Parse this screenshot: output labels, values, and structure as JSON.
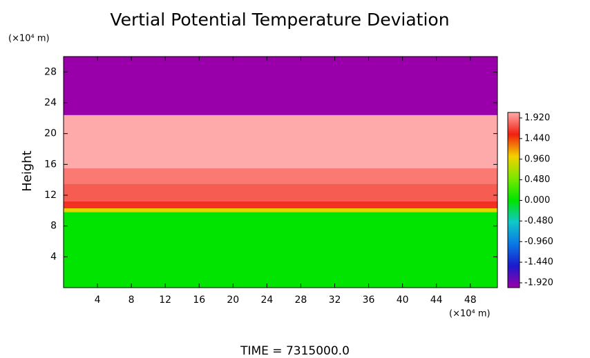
{
  "chart_data": {
    "type": "heatmap",
    "title": "Vertial Potential Temperature Deviation",
    "y_label": "Height",
    "y_unit": "(×10⁴ m)",
    "x_unit": "(×10⁴ m)",
    "footer": "TIME = 7315000.0",
    "xlim": [
      0,
      51.2
    ],
    "xticks": [
      4,
      8,
      12,
      16,
      20,
      24,
      28,
      32,
      36,
      40,
      44,
      48
    ],
    "ylim": [
      0,
      30
    ],
    "yticks": [
      4,
      8,
      12,
      16,
      20,
      24,
      28
    ],
    "field": [
      {
        "y0": 0,
        "y1": 9.8,
        "value": 0.0
      },
      {
        "y0": 9.8,
        "y1": 10.3,
        "value": 0.9
      },
      {
        "y0": 10.3,
        "y1": 11.2,
        "value": 1.5
      },
      {
        "y0": 11.2,
        "y1": 13.5,
        "value": 1.65
      },
      {
        "y0": 13.5,
        "y1": 15.5,
        "value": 1.75
      },
      {
        "y0": 15.5,
        "y1": 22.4,
        "value": 1.92
      },
      {
        "y0": 22.4,
        "y1": 30,
        "value": -1.92
      }
    ],
    "colorscale": [
      {
        "value": -1.92,
        "color": "#9a00aa"
      },
      {
        "value": -1.44,
        "color": "#1a1acc"
      },
      {
        "value": -0.96,
        "color": "#0a78e6"
      },
      {
        "value": -0.48,
        "color": "#10c8c8"
      },
      {
        "value": 0.0,
        "color": "#00e400"
      },
      {
        "value": 0.48,
        "color": "#7ce800"
      },
      {
        "value": 0.96,
        "color": "#f4d000"
      },
      {
        "value": 1.44,
        "color": "#f02010"
      },
      {
        "value": 1.92,
        "color": "#ffaaaa"
      }
    ],
    "cticks": [
      {
        "value": 1.92,
        "label": "1.920"
      },
      {
        "value": 1.44,
        "label": "1.440"
      },
      {
        "value": 0.96,
        "label": "0.960"
      },
      {
        "value": 0.48,
        "label": "0.480"
      },
      {
        "value": 0.0,
        "label": "0.000"
      },
      {
        "value": -0.48,
        "label": "-0.480"
      },
      {
        "value": -0.96,
        "label": "-0.960"
      },
      {
        "value": -1.44,
        "label": "-1.440"
      },
      {
        "value": -1.92,
        "label": "-1.920"
      }
    ]
  }
}
